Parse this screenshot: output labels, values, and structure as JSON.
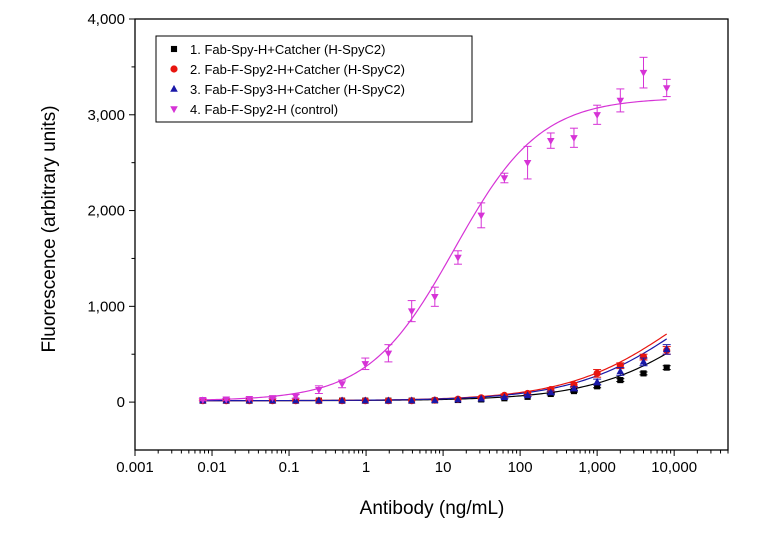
{
  "chart_data": {
    "type": "scatter",
    "xscale": "log",
    "xlim": [
      0.001,
      50000
    ],
    "ylim": [
      -500,
      4000
    ],
    "xlabel": "Antibody (ng/mL)",
    "ylabel": "Fluorescence (arbitrary units)",
    "xticks": [
      {
        "value": 0.001,
        "label": "0.001"
      },
      {
        "value": 0.01,
        "label": "0.01"
      },
      {
        "value": 0.1,
        "label": "0.1"
      },
      {
        "value": 1,
        "label": "1"
      },
      {
        "value": 10,
        "label": "10"
      },
      {
        "value": 100,
        "label": "100"
      },
      {
        "value": 1000,
        "label": "1,000"
      },
      {
        "value": 10000,
        "label": "10,000"
      }
    ],
    "yticks": [
      {
        "value": 0,
        "label": "0"
      },
      {
        "value": 1000,
        "label": "1,000"
      },
      {
        "value": 2000,
        "label": "2,000"
      },
      {
        "value": 3000,
        "label": "3,000"
      },
      {
        "value": 4000,
        "label": "4,000"
      }
    ],
    "grid": false,
    "legend_position": "top-left",
    "x": [
      0.0076,
      0.0153,
      0.0305,
      0.061,
      0.122,
      0.244,
      0.488,
      0.977,
      1.95,
      3.91,
      7.81,
      15.6,
      31.25,
      62.5,
      125,
      250,
      500,
      1000,
      2000,
      4000,
      8000
    ],
    "series": [
      {
        "name": "1. Fab-Spy-H+Catcher (H-SpyC2)",
        "color": "#000000",
        "marker": "square",
        "y": [
          15,
          15,
          15,
          15,
          15,
          15,
          15,
          15,
          15,
          15,
          18,
          22,
          28,
          40,
          55,
          85,
          115,
          165,
          230,
          300,
          360
        ],
        "err": [
          0,
          0,
          0,
          0,
          0,
          0,
          0,
          0,
          0,
          0,
          0,
          0,
          0,
          0,
          0,
          10,
          10,
          15,
          15,
          15,
          20
        ],
        "fit": {
          "bottom": 15,
          "top": 1600,
          "ec50": 30000,
          "hill": 0.6
        }
      },
      {
        "name": "2. Fab-F-Spy2-H+Catcher (H-SpyC2)",
        "color": "#e8150f",
        "marker": "circle",
        "y": [
          15,
          15,
          15,
          15,
          15,
          15,
          15,
          15,
          15,
          15,
          20,
          30,
          45,
          70,
          90,
          130,
          180,
          300,
          380,
          470,
          540
        ],
        "err": [
          0,
          0,
          0,
          0,
          0,
          0,
          0,
          0,
          0,
          0,
          0,
          0,
          10,
          15,
          15,
          20,
          25,
          40,
          30,
          30,
          40
        ],
        "fit": {
          "bottom": 15,
          "top": 1600,
          "ec50": 12000,
          "hill": 0.6
        }
      },
      {
        "name": "3. Fab-F-Spy3-H+Catcher (H-SpyC2)",
        "color": "#1a18a8",
        "marker": "triangle-up",
        "y": [
          15,
          15,
          15,
          15,
          15,
          15,
          15,
          15,
          15,
          15,
          18,
          25,
          35,
          50,
          70,
          100,
          140,
          210,
          320,
          420,
          550
        ],
        "err": [
          0,
          0,
          0,
          0,
          0,
          0,
          0,
          0,
          0,
          0,
          0,
          0,
          0,
          10,
          10,
          15,
          20,
          30,
          40,
          40,
          50
        ],
        "fit": {
          "bottom": 15,
          "top": 1600,
          "ec50": 15000,
          "hill": 0.6
        }
      },
      {
        "name": "4. Fab-F-Spy2-H (control)",
        "color": "#d633d6",
        "marker": "triangle-down",
        "y": [
          25,
          30,
          35,
          45,
          60,
          130,
          190,
          400,
          510,
          950,
          1100,
          1510,
          1950,
          2340,
          2500,
          2730,
          2760,
          3000,
          3150,
          3440,
          3280
        ],
        "err": [
          10,
          10,
          10,
          10,
          20,
          40,
          40,
          60,
          90,
          110,
          100,
          70,
          130,
          50,
          170,
          80,
          100,
          100,
          120,
          160,
          90
        ],
        "fit": {
          "bottom": 15,
          "top": 3180,
          "ec50": 14,
          "hill": 0.78
        }
      }
    ]
  }
}
